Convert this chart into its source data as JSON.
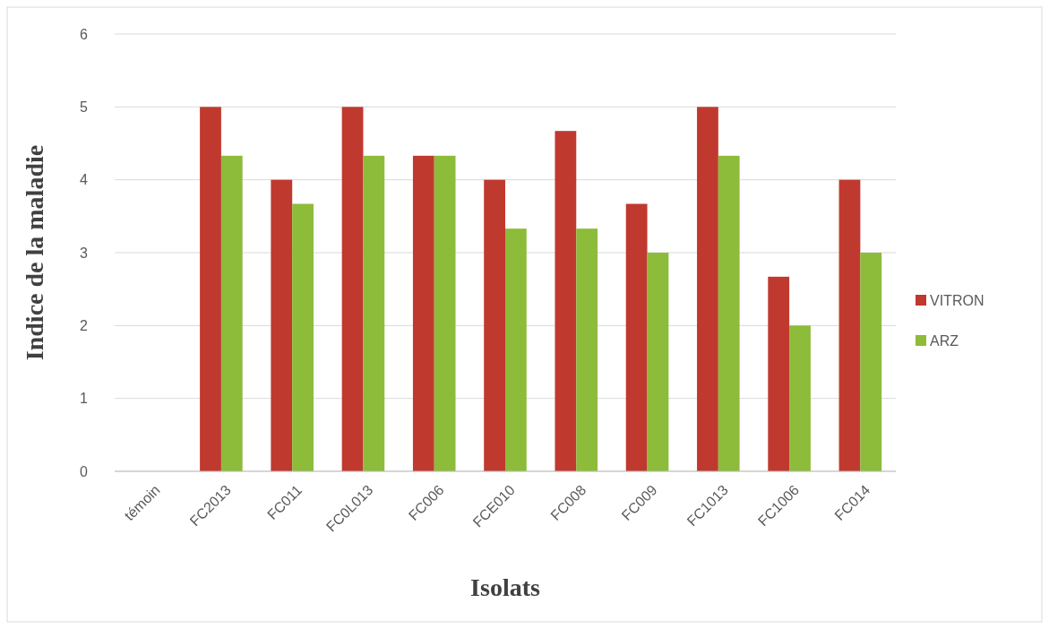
{
  "chart_data": {
    "type": "bar",
    "xlabel": "Isolats",
    "ylabel": "Indice de la maladie",
    "categories": [
      "témoin",
      "FC2013",
      "FC011",
      "FC0L013",
      "FC006",
      "FCE010",
      "FC008",
      "FC009",
      "FC1013",
      "FC1006",
      "FC014"
    ],
    "series": [
      {
        "name": "VITRON",
        "color": "#c0392f",
        "values": [
          0,
          5,
          4,
          5,
          4.33,
          4,
          4.67,
          3.67,
          5,
          2.67,
          4
        ]
      },
      {
        "name": "ARZ",
        "color": "#8dbb3a",
        "values": [
          0,
          4.33,
          3.67,
          4.33,
          4.33,
          3.33,
          3.33,
          3,
          4.33,
          2,
          3
        ]
      }
    ],
    "ylim": [
      0,
      6
    ],
    "yticks": [
      0,
      1,
      2,
      3,
      4,
      5,
      6
    ],
    "grid": "y",
    "legend": "right"
  }
}
